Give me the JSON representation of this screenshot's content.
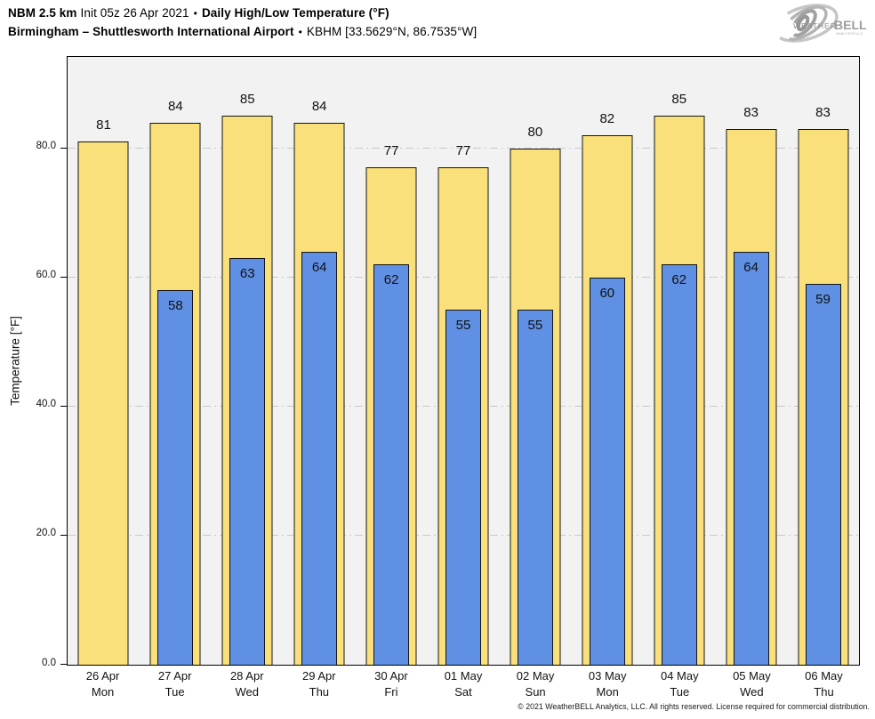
{
  "header": {
    "line1": {
      "model": "NBM 2.5 km",
      "init": "Init 05z 26 Apr 2021",
      "bullet": "•",
      "product": "Daily High/Low Temperature (°F)"
    },
    "line2": {
      "location": "Birmingham – Shuttlesworth International Airport",
      "bullet": "•",
      "station": "KBHM [33.5629°N, 86.7535°W]"
    },
    "logo": {
      "weather": "WEATHER",
      "bell": "BELL",
      "tagline": "ANALYTICS LLC"
    }
  },
  "chart_data": {
    "type": "bar",
    "title": "NBM 2.5 km Init 05z 26 Apr 2021 • Daily High/Low Temperature (°F)",
    "subtitle": "Birmingham – Shuttlesworth International Airport • KBHM [33.5629°N, 86.7535°W]",
    "xlabel": "",
    "ylabel": "Temperature [°F]",
    "ylim": [
      0,
      94
    ],
    "yticks": [
      0,
      20,
      40,
      60,
      80
    ],
    "ytick_labels": [
      "0.0",
      "20.0",
      "40.0",
      "60.0",
      "80.0"
    ],
    "grid": "horizontal-dash-dot",
    "legend_position": "none",
    "categories": [
      {
        "date": "26 Apr",
        "day": "Mon"
      },
      {
        "date": "27 Apr",
        "day": "Tue"
      },
      {
        "date": "28 Apr",
        "day": "Wed"
      },
      {
        "date": "29 Apr",
        "day": "Thu"
      },
      {
        "date": "30 Apr",
        "day": "Fri"
      },
      {
        "date": "01 May",
        "day": "Sat"
      },
      {
        "date": "02 May",
        "day": "Sun"
      },
      {
        "date": "03 May",
        "day": "Mon"
      },
      {
        "date": "04 May",
        "day": "Tue"
      },
      {
        "date": "05 May",
        "day": "Wed"
      },
      {
        "date": "06 May",
        "day": "Thu"
      }
    ],
    "series": [
      {
        "name": "Daily High",
        "color": "#FAE07A",
        "values": [
          81,
          84,
          85,
          84,
          77,
          77,
          80,
          82,
          85,
          83,
          83
        ]
      },
      {
        "name": "Daily Low",
        "color": "#5F90E4",
        "values": [
          null,
          58,
          63,
          64,
          62,
          55,
          55,
          60,
          62,
          64,
          59
        ]
      }
    ]
  },
  "colors": {
    "high_bar": "#FAE07A",
    "low_bar": "#5F90E4",
    "bar_border": "#141414",
    "plot_background": "#F2F2F2",
    "gridline": "#C9C9C9",
    "axis": "#000000",
    "logo_gray": "#9c9c9c"
  },
  "footer": {
    "copyright": "© 2021 WeatherBELL Analytics, LLC. All rights reserved. License required for commercial distribution."
  }
}
